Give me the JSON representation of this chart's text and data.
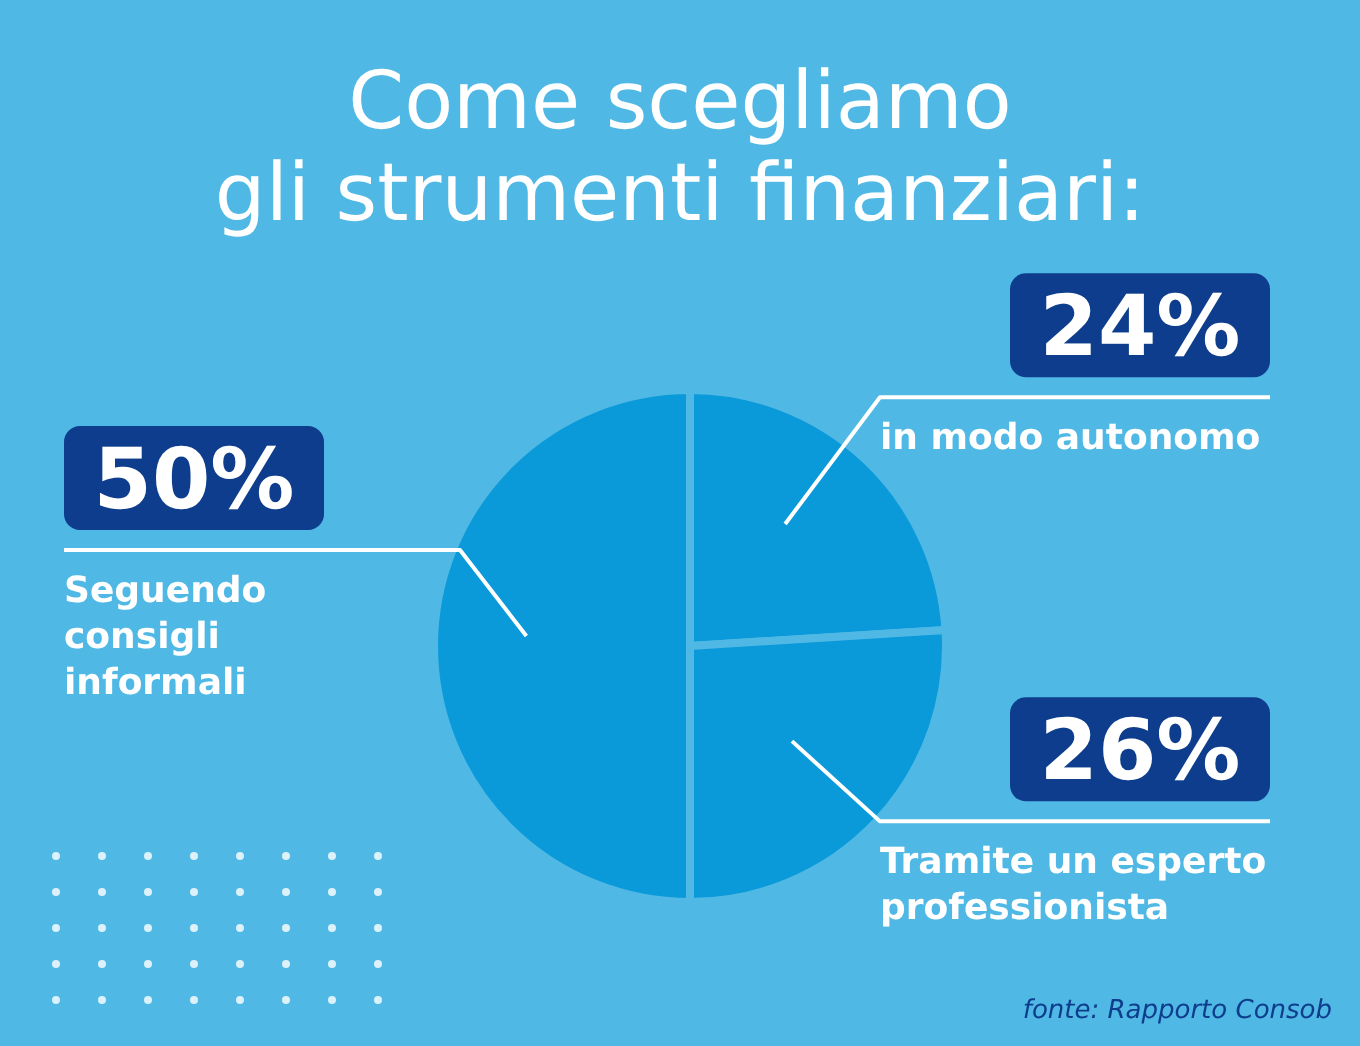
{
  "chart_data": {
    "type": "pie",
    "title": "Come scegliamo\ngli strumenti finanziari:",
    "categories": [
      "in modo autonomo",
      "Tramite un esperto professionista",
      "Seguendo consigli informali"
    ],
    "values": [
      24,
      26,
      50
    ],
    "value_labels": [
      "24%",
      "26%",
      "50%"
    ],
    "colors": [
      "#0a9ad9",
      "#0a9ad9",
      "#0a9ad9"
    ],
    "annotations": [
      "fonte: Rapporto Consob"
    ]
  }
}
